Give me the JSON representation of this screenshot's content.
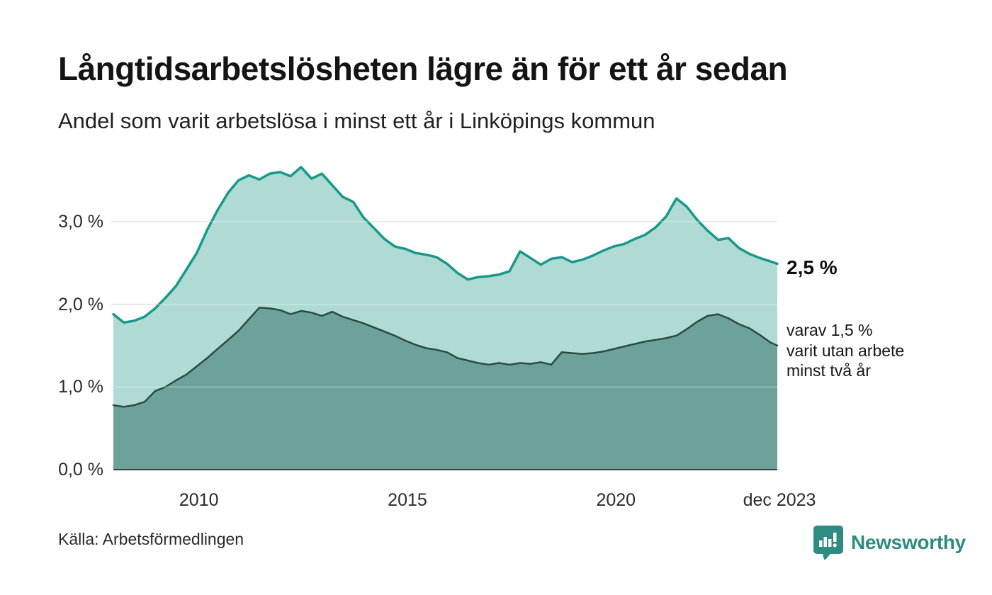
{
  "header": {
    "title": "Långtidsarbetslösheten lägre än för ett år sedan",
    "subtitle": "Andel som varit arbetslösa i minst ett år i Linköpings kommun"
  },
  "chart_data": {
    "type": "area",
    "title": "Långtidsarbetslösheten lägre än för ett år sedan",
    "subtitle": "Andel som varit arbetslösa i minst ett år i Linköpings kommun",
    "x_unit": "decimal_year_monthly_estimates",
    "xlim": [
      2008,
      2023.92
    ],
    "ylim": [
      0,
      3.8
    ],
    "grid": "horizontal",
    "legend_position": "none",
    "x": [
      2008.0,
      2008.25,
      2008.5,
      2008.75,
      2009.0,
      2009.25,
      2009.5,
      2009.75,
      2010.0,
      2010.25,
      2010.5,
      2010.75,
      2011.0,
      2011.25,
      2011.5,
      2011.75,
      2012.0,
      2012.25,
      2012.5,
      2012.75,
      2013.0,
      2013.25,
      2013.5,
      2013.75,
      2014.0,
      2014.25,
      2014.5,
      2014.75,
      2015.0,
      2015.25,
      2015.5,
      2015.75,
      2016.0,
      2016.25,
      2016.5,
      2016.75,
      2017.0,
      2017.25,
      2017.5,
      2017.75,
      2018.0,
      2018.25,
      2018.5,
      2018.75,
      2019.0,
      2019.25,
      2019.5,
      2019.75,
      2020.0,
      2020.25,
      2020.5,
      2020.75,
      2021.0,
      2021.25,
      2021.5,
      2021.75,
      2022.0,
      2022.25,
      2022.5,
      2022.75,
      2023.0,
      2023.25,
      2023.5,
      2023.75,
      2023.92
    ],
    "series": [
      {
        "name": "Andel arbetslösa minst ett år",
        "line_color": "#17998a",
        "fill_color": "#b0dbd4",
        "line_width": 3.5,
        "values": [
          1.88,
          1.78,
          1.8,
          1.85,
          1.95,
          2.08,
          2.22,
          2.42,
          2.62,
          2.9,
          3.14,
          3.35,
          3.5,
          3.56,
          3.51,
          3.58,
          3.6,
          3.55,
          3.66,
          3.52,
          3.58,
          3.44,
          3.3,
          3.24,
          3.05,
          2.92,
          2.79,
          2.7,
          2.67,
          2.62,
          2.6,
          2.57,
          2.49,
          2.38,
          2.3,
          2.33,
          2.34,
          2.36,
          2.4,
          2.64,
          2.56,
          2.48,
          2.55,
          2.57,
          2.51,
          2.54,
          2.59,
          2.65,
          2.7,
          2.73,
          2.79,
          2.84,
          2.93,
          3.06,
          3.28,
          3.18,
          3.02,
          2.89,
          2.78,
          2.8,
          2.68,
          2.61,
          2.56,
          2.52,
          2.49
        ]
      },
      {
        "name": "varav arbetslösa minst två år",
        "line_color": "#2a4a46",
        "fill_color": "#6da29a",
        "line_width": 2.5,
        "values": [
          0.78,
          0.76,
          0.78,
          0.82,
          0.95,
          1.0,
          1.08,
          1.15,
          1.25,
          1.35,
          1.46,
          1.57,
          1.68,
          1.82,
          1.96,
          1.95,
          1.93,
          1.88,
          1.92,
          1.9,
          1.86,
          1.91,
          1.85,
          1.81,
          1.77,
          1.72,
          1.67,
          1.62,
          1.56,
          1.51,
          1.47,
          1.45,
          1.42,
          1.35,
          1.32,
          1.29,
          1.27,
          1.29,
          1.27,
          1.29,
          1.28,
          1.3,
          1.27,
          1.42,
          1.41,
          1.4,
          1.41,
          1.43,
          1.46,
          1.49,
          1.52,
          1.55,
          1.57,
          1.59,
          1.62,
          1.7,
          1.79,
          1.86,
          1.88,
          1.83,
          1.76,
          1.71,
          1.63,
          1.54,
          1.5
        ]
      }
    ],
    "y_ticks": [
      {
        "value": 3.0,
        "label": "3,0 %"
      },
      {
        "value": 2.0,
        "label": "2,0 %"
      },
      {
        "value": 1.0,
        "label": "1,0 %"
      },
      {
        "value": 0.0,
        "label": "0,0 %"
      }
    ],
    "x_ticks": [
      {
        "value": 2010.0,
        "label": "2010"
      },
      {
        "value": 2015.0,
        "label": "2015"
      },
      {
        "value": 2020.0,
        "label": "2020"
      },
      {
        "value": 2023.92,
        "label": "dec 2023"
      }
    ],
    "end_labels": {
      "primary": "2,5 %",
      "secondary_lines": [
        "varav 1,5 %",
        "varit utan arbete",
        "minst två år"
      ]
    },
    "gridline_color": "#d9d9d9",
    "baseline_color": "#3f3f3f"
  },
  "footer": {
    "source": "Källa: Arbetsförmedlingen",
    "brand": "Newsworthy",
    "brand_icon": "bar-chart-speech-bubble-icon",
    "brand_color": "#2e8b82"
  }
}
